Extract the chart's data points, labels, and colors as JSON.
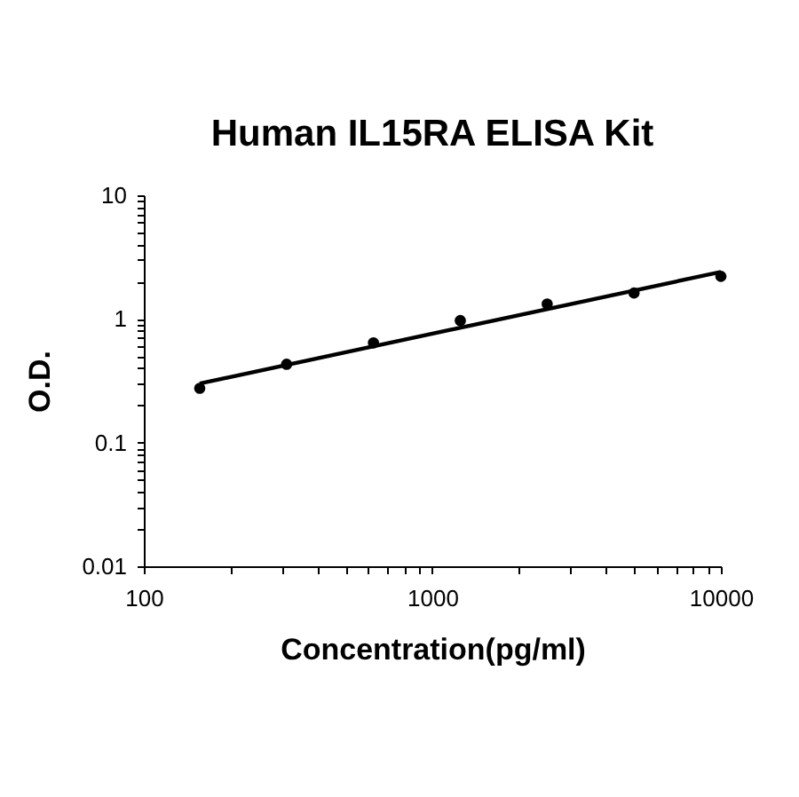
{
  "chart_data": {
    "type": "scatter",
    "title": "Human IL15RA ELISA Kit",
    "xlabel": "Concentration(pg/ml)",
    "ylabel": "O.D.",
    "log": "xy",
    "marker": "circle",
    "line_style": "solid",
    "xlim": [
      100,
      10000
    ],
    "ylim": [
      0.01,
      10
    ],
    "xticks": [
      100,
      {
        "value": 200,
        "label": null
      },
      {
        "value": 300,
        "label": null
      },
      {
        "value": 400,
        "label": null
      },
      {
        "value": 500,
        "label": null
      },
      {
        "value": 600,
        "label": null
      },
      {
        "value": 700,
        "label": null
      },
      {
        "value": 800,
        "label": null
      },
      {
        "value": 900,
        "label": null
      },
      1000,
      {
        "value": 2000,
        "label": null
      },
      {
        "value": 3000,
        "label": null
      },
      {
        "value": 4000,
        "label": null
      },
      {
        "value": 5000,
        "label": null
      },
      {
        "value": 6000,
        "label": null
      },
      {
        "value": 7000,
        "label": null
      },
      {
        "value": 8000,
        "label": null
      },
      {
        "value": 9000,
        "label": null
      },
      10000
    ],
    "yticks": [
      0.01,
      {
        "value": 0.02,
        "label": null
      },
      {
        "value": 0.03,
        "label": null
      },
      {
        "value": 0.04,
        "label": null
      },
      {
        "value": 0.05,
        "label": null
      },
      {
        "value": 0.06,
        "label": null
      },
      {
        "value": 0.07,
        "label": null
      },
      {
        "value": 0.08,
        "label": null
      },
      {
        "value": 0.09,
        "label": null
      },
      0.1,
      {
        "value": 0.2,
        "label": null
      },
      {
        "value": 0.3,
        "label": null
      },
      {
        "value": 0.4,
        "label": null
      },
      {
        "value": 0.5,
        "label": null
      },
      {
        "value": 0.6,
        "label": null
      },
      {
        "value": 0.7,
        "label": null
      },
      {
        "value": 0.8,
        "label": null
      },
      {
        "value": 0.9,
        "label": null
      },
      1,
      {
        "value": 2,
        "label": null
      },
      {
        "value": 3,
        "label": null
      },
      {
        "value": 4,
        "label": null
      },
      {
        "value": 5,
        "label": null
      },
      {
        "value": 6,
        "label": null
      },
      {
        "value": 7,
        "label": null
      },
      {
        "value": 8,
        "label": null
      },
      {
        "value": 9,
        "label": null
      },
      10
    ],
    "series": [
      {
        "color": "#000000",
        "x": [
          156.25,
          312.5,
          625,
          1250,
          2500,
          5000,
          10000
        ],
        "values": [
          0.275,
          0.43,
          0.64,
          0.97,
          1.32,
          1.62,
          2.21
        ]
      },
      {
        "type": "line",
        "marker": "none",
        "color": "#000000",
        "x": [
          156.25,
          10000
        ],
        "values": [
          0.3,
          2.4
        ]
      }
    ]
  }
}
